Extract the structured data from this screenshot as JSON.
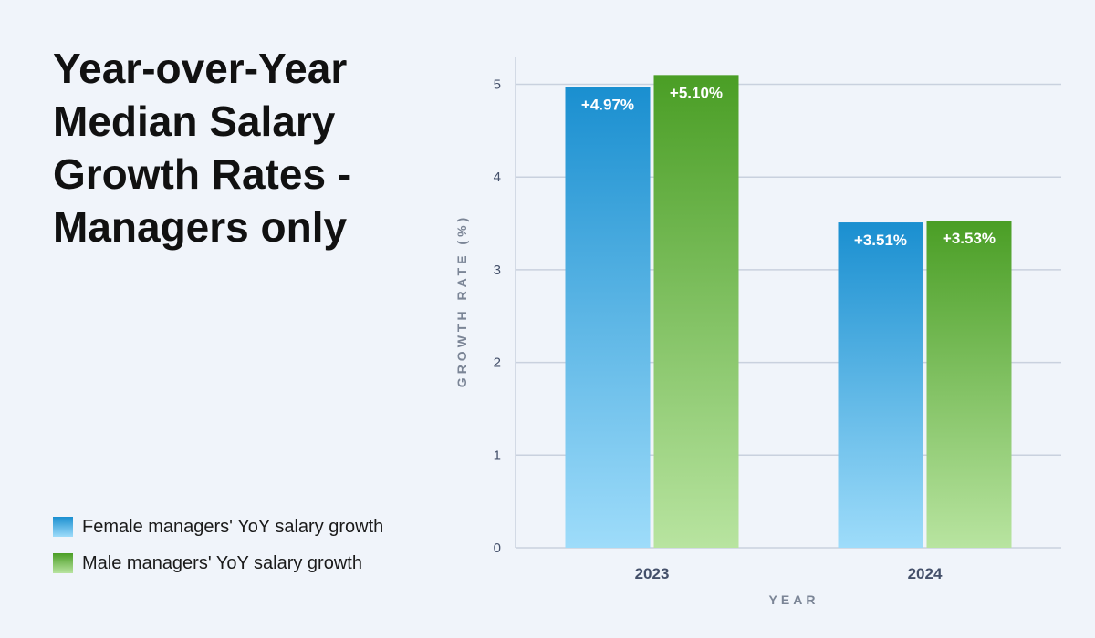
{
  "chart_data": {
    "type": "bar",
    "title": "Year-over-Year Median Salary Growth Rates - Managers only",
    "xlabel": "YEAR",
    "ylabel": "GROWTH RATE (%)",
    "categories": [
      "2023",
      "2024"
    ],
    "ylim": [
      0,
      5.3
    ],
    "yticks": [
      0,
      1,
      2,
      3,
      4,
      5
    ],
    "grid": true,
    "legend_position": "bottom-left",
    "series": [
      {
        "name": "Female managers' YoY salary growth",
        "values": [
          4.97,
          3.51
        ],
        "labels": [
          "+4.97%",
          "+3.51%"
        ],
        "color_top": "#1a8fd0",
        "color_bottom": "#9edcfa"
      },
      {
        "name": "Male managers' YoY salary growth",
        "values": [
          5.1,
          3.53
        ],
        "labels": [
          "+5.10%",
          "+3.53%"
        ],
        "color_top": "#4a9e25",
        "color_bottom": "#b8e4a0"
      }
    ]
  }
}
